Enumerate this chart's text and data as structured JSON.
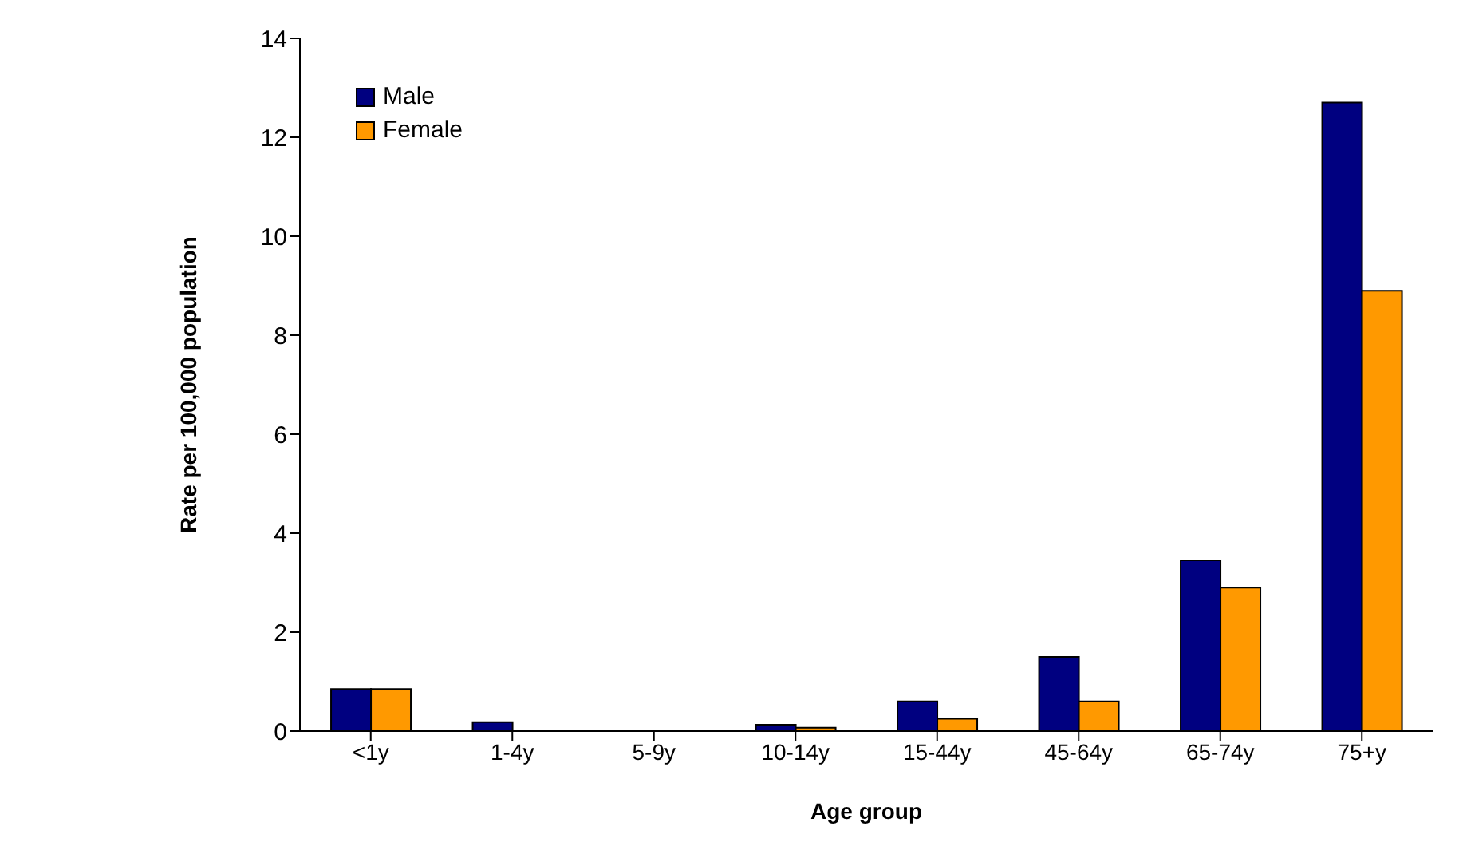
{
  "chart_data": {
    "type": "bar",
    "xlabel": "Age group",
    "ylabel": "Rate per 100,000 population",
    "categories": [
      "<1y",
      "1-4y",
      "5-9y",
      "10-14y",
      "15-44y",
      "45-64y",
      "65-74y",
      "75+y"
    ],
    "series": [
      {
        "name": "Male",
        "color": "#000080",
        "values": [
          0.85,
          0.18,
          0,
          0.13,
          0.6,
          1.5,
          3.45,
          12.7
        ]
      },
      {
        "name": "Female",
        "color": "#ff9900",
        "values": [
          0.85,
          0,
          0,
          0.07,
          0.25,
          0.6,
          2.9,
          8.9
        ]
      }
    ],
    "ylim": [
      0,
      14
    ],
    "yticks": [
      0,
      2,
      4,
      6,
      8,
      10,
      12,
      14
    ],
    "grid": false,
    "legend": "top left"
  }
}
